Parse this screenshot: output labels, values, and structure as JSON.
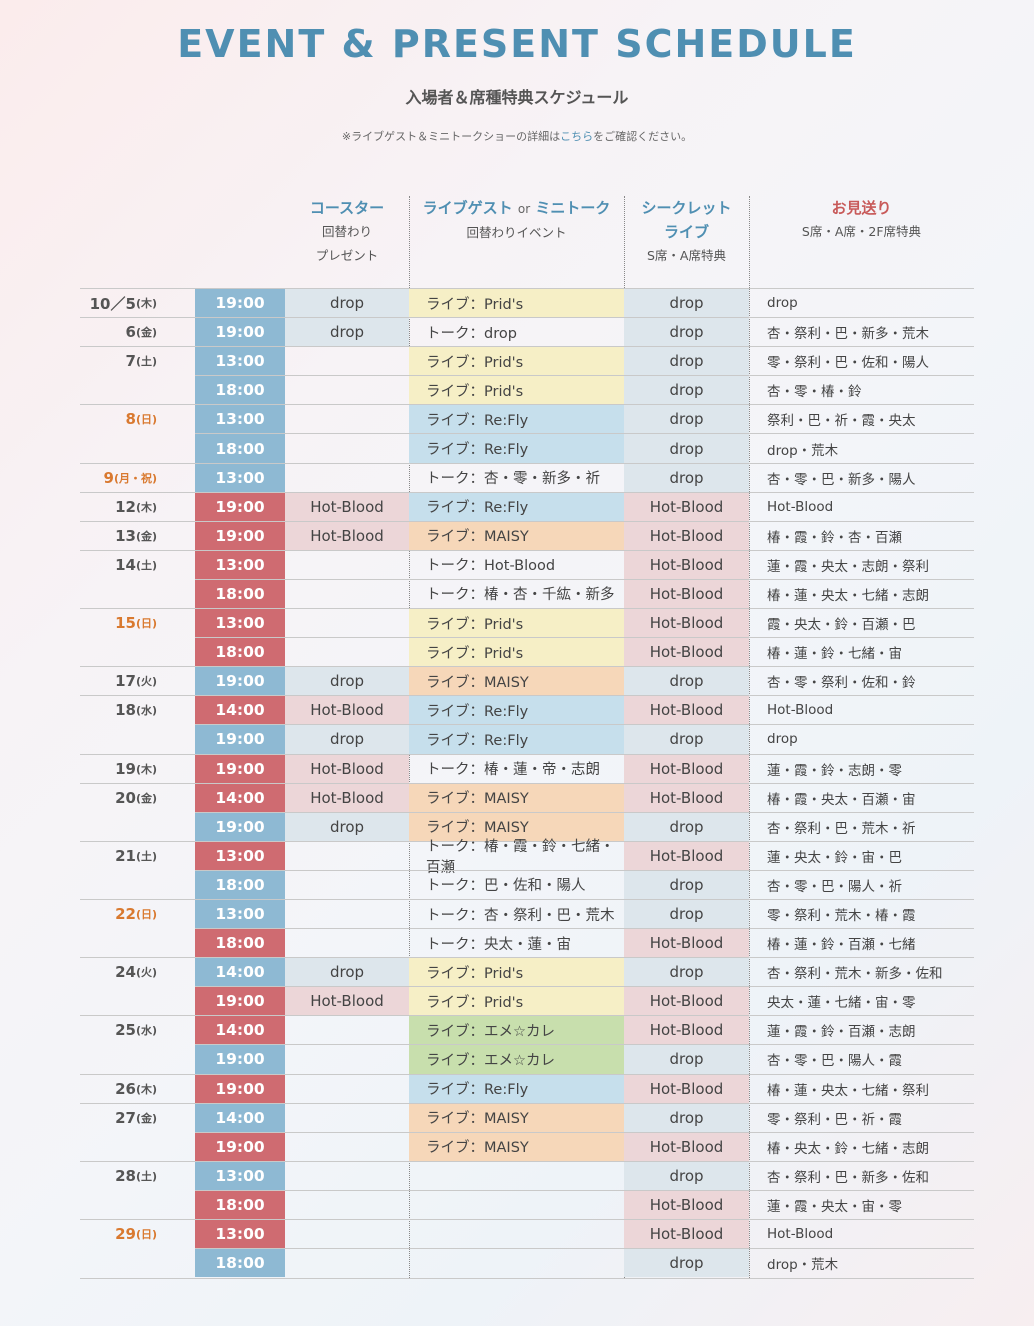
{
  "title": "EVENT & PRESENT SCHEDULE",
  "subtitle": "入場者＆席種特典スケジュール",
  "note": {
    "prefix": "※ライブゲスト＆ミニトークショーの詳細は",
    "link": "こちら",
    "suffix": "をご確認ください。"
  },
  "headers": {
    "coaster": {
      "title": "コースター",
      "sub1": "回替わり",
      "sub2": "プレゼント"
    },
    "event": {
      "title_a": "ライブゲスト",
      "or": "or",
      "title_b": "ミニトーク",
      "sub1": "回替わりイベント"
    },
    "secret": {
      "title1": "シークレット",
      "title2": "ライブ",
      "sub1": "S席・A席特典"
    },
    "send": {
      "title": "お見送り",
      "sub1": "S席・A席・2F席特典"
    }
  },
  "colors": {
    "title_blue": "#4f8fb2",
    "time_blue": "#8eb9d3",
    "time_red": "#cf6b71",
    "holiday_orange": "#d9792f",
    "drop_bg": "#dde6ec",
    "hotblood_bg": "#ecd6d8",
    "prids_bg": "#f6efc6",
    "refly_bg": "#c6dfec",
    "maisy_bg": "#f6d7b9",
    "eme_bg": "#c8dfad"
  },
  "rows": [
    {
      "date": "10／5",
      "dow": "(木)",
      "hol": false,
      "time": "19:00",
      "tc": "blue",
      "coaster": "drop",
      "cc": "drop",
      "event": "ライブ：Prid's",
      "ec": "prids",
      "secret": "drop",
      "sc": "drop",
      "send": "drop"
    },
    {
      "date": "6",
      "dow": "(金)",
      "hol": false,
      "time": "19:00",
      "tc": "blue",
      "coaster": "drop",
      "cc": "drop",
      "event": "トーク：drop",
      "ec": "talk",
      "secret": "drop",
      "sc": "drop",
      "send": "杏・祭利・巴・新多・荒木"
    },
    {
      "date": "7",
      "dow": "(土)",
      "hol": false,
      "time": "13:00",
      "tc": "blue",
      "coaster": "",
      "cc": "",
      "event": "ライブ：Prid's",
      "ec": "prids",
      "secret": "drop",
      "sc": "drop",
      "send": "零・祭利・巴・佐和・陽人"
    },
    {
      "date": "",
      "dow": "",
      "hol": false,
      "time": "18:00",
      "tc": "blue",
      "coaster": "",
      "cc": "",
      "event": "ライブ：Prid's",
      "ec": "prids",
      "secret": "drop",
      "sc": "drop",
      "send": "杏・零・椿・鈴"
    },
    {
      "date": "8",
      "dow": "(日)",
      "hol": true,
      "time": "13:00",
      "tc": "blue",
      "coaster": "",
      "cc": "",
      "event": "ライブ：Re:Fly",
      "ec": "refly",
      "secret": "drop",
      "sc": "drop",
      "send": "祭利・巴・祈・霞・央太"
    },
    {
      "date": "",
      "dow": "",
      "hol": false,
      "time": "18:00",
      "tc": "blue",
      "coaster": "",
      "cc": "",
      "event": "ライブ：Re:Fly",
      "ec": "refly",
      "secret": "drop",
      "sc": "drop",
      "send": "drop・荒木"
    },
    {
      "date": "9",
      "dow": "(月・祝)",
      "hol": true,
      "time": "13:00",
      "tc": "blue",
      "coaster": "",
      "cc": "",
      "event": "トーク：杏・零・新多・祈",
      "ec": "talk",
      "secret": "drop",
      "sc": "drop",
      "send": "杏・零・巴・新多・陽人"
    },
    {
      "date": "12",
      "dow": "(木)",
      "hol": false,
      "time": "19:00",
      "tc": "red",
      "coaster": "Hot-Blood",
      "cc": "hot",
      "event": "ライブ：Re:Fly",
      "ec": "refly",
      "secret": "Hot-Blood",
      "sc": "hot",
      "send": "Hot-Blood"
    },
    {
      "date": "13",
      "dow": "(金)",
      "hol": false,
      "time": "19:00",
      "tc": "red",
      "coaster": "Hot-Blood",
      "cc": "hot",
      "event": "ライブ：MAISY",
      "ec": "maisy",
      "secret": "Hot-Blood",
      "sc": "hot",
      "send": "椿・霞・鈴・杏・百瀬"
    },
    {
      "date": "14",
      "dow": "(土)",
      "hol": false,
      "time": "13:00",
      "tc": "red",
      "coaster": "",
      "cc": "",
      "event": "トーク：Hot-Blood",
      "ec": "talk",
      "secret": "Hot-Blood",
      "sc": "hot",
      "send": "蓮・霞・央太・志朗・祭利"
    },
    {
      "date": "",
      "dow": "",
      "hol": false,
      "time": "18:00",
      "tc": "red",
      "coaster": "",
      "cc": "",
      "event": "トーク：椿・杏・千紘・新多",
      "ec": "talk",
      "secret": "Hot-Blood",
      "sc": "hot",
      "send": "椿・蓮・央太・七緒・志朗"
    },
    {
      "date": "15",
      "dow": "(日)",
      "hol": true,
      "time": "13:00",
      "tc": "red",
      "coaster": "",
      "cc": "",
      "event": "ライブ：Prid's",
      "ec": "prids",
      "secret": "Hot-Blood",
      "sc": "hot",
      "send": "霞・央太・鈴・百瀬・巴"
    },
    {
      "date": "",
      "dow": "",
      "hol": false,
      "time": "18:00",
      "tc": "red",
      "coaster": "",
      "cc": "",
      "event": "ライブ：Prid's",
      "ec": "prids",
      "secret": "Hot-Blood",
      "sc": "hot",
      "send": "椿・蓮・鈴・七緒・宙"
    },
    {
      "date": "17",
      "dow": "(火)",
      "hol": false,
      "time": "19:00",
      "tc": "blue",
      "coaster": "drop",
      "cc": "drop",
      "event": "ライブ：MAISY",
      "ec": "maisy",
      "secret": "drop",
      "sc": "drop",
      "send": "杏・零・祭利・佐和・鈴"
    },
    {
      "date": "18",
      "dow": "(水)",
      "hol": false,
      "time": "14:00",
      "tc": "red",
      "coaster": "Hot-Blood",
      "cc": "hot",
      "event": "ライブ：Re:Fly",
      "ec": "refly",
      "secret": "Hot-Blood",
      "sc": "hot",
      "send": "Hot-Blood"
    },
    {
      "date": "",
      "dow": "",
      "hol": false,
      "time": "19:00",
      "tc": "blue",
      "coaster": "drop",
      "cc": "drop",
      "event": "ライブ：Re:Fly",
      "ec": "refly",
      "secret": "drop",
      "sc": "drop",
      "send": "drop"
    },
    {
      "date": "19",
      "dow": "(木)",
      "hol": false,
      "time": "19:00",
      "tc": "red",
      "coaster": "Hot-Blood",
      "cc": "hot",
      "event": "トーク：椿・蓮・帝・志朗",
      "ec": "talk",
      "secret": "Hot-Blood",
      "sc": "hot",
      "send": "蓮・霞・鈴・志朗・零"
    },
    {
      "date": "20",
      "dow": "(金)",
      "hol": false,
      "time": "14:00",
      "tc": "red",
      "coaster": "Hot-Blood",
      "cc": "hot",
      "event": "ライブ：MAISY",
      "ec": "maisy",
      "secret": "Hot-Blood",
      "sc": "hot",
      "send": "椿・霞・央太・百瀬・宙"
    },
    {
      "date": "",
      "dow": "",
      "hol": false,
      "time": "19:00",
      "tc": "blue",
      "coaster": "drop",
      "cc": "drop",
      "event": "ライブ：MAISY",
      "ec": "maisy",
      "secret": "drop",
      "sc": "drop",
      "send": "杏・祭利・巴・荒木・祈"
    },
    {
      "date": "21",
      "dow": "(土)",
      "hol": false,
      "time": "13:00",
      "tc": "red",
      "coaster": "",
      "cc": "",
      "event": "トーク：椿・霞・鈴・七緒・百瀬",
      "ec": "talk",
      "secret": "Hot-Blood",
      "sc": "hot",
      "send": "蓮・央太・鈴・宙・巴"
    },
    {
      "date": "",
      "dow": "",
      "hol": false,
      "time": "18:00",
      "tc": "blue",
      "coaster": "",
      "cc": "",
      "event": "トーク：巴・佐和・陽人",
      "ec": "talk",
      "secret": "drop",
      "sc": "drop",
      "send": "杏・零・巴・陽人・祈"
    },
    {
      "date": "22",
      "dow": "(日)",
      "hol": true,
      "time": "13:00",
      "tc": "blue",
      "coaster": "",
      "cc": "",
      "event": "トーク：杏・祭利・巴・荒木",
      "ec": "talk",
      "secret": "drop",
      "sc": "drop",
      "send": "零・祭利・荒木・椿・霞"
    },
    {
      "date": "",
      "dow": "",
      "hol": false,
      "time": "18:00",
      "tc": "red",
      "coaster": "",
      "cc": "",
      "event": "トーク：央太・蓮・宙",
      "ec": "talk",
      "secret": "Hot-Blood",
      "sc": "hot",
      "send": "椿・蓮・鈴・百瀬・七緒"
    },
    {
      "date": "24",
      "dow": "(火)",
      "hol": false,
      "time": "14:00",
      "tc": "blue",
      "coaster": "drop",
      "cc": "drop",
      "event": "ライブ：Prid's",
      "ec": "prids",
      "secret": "drop",
      "sc": "drop",
      "send": "杏・祭利・荒木・新多・佐和"
    },
    {
      "date": "",
      "dow": "",
      "hol": false,
      "time": "19:00",
      "tc": "red",
      "coaster": "Hot-Blood",
      "cc": "hot",
      "event": "ライブ：Prid's",
      "ec": "prids",
      "secret": "Hot-Blood",
      "sc": "hot",
      "send": "央太・蓮・七緒・宙・零"
    },
    {
      "date": "25",
      "dow": "(水)",
      "hol": false,
      "time": "14:00",
      "tc": "red",
      "coaster": "",
      "cc": "",
      "event": "ライブ：エメ☆カレ",
      "ec": "eme",
      "secret": "Hot-Blood",
      "sc": "hot",
      "send": "蓮・霞・鈴・百瀬・志朗"
    },
    {
      "date": "",
      "dow": "",
      "hol": false,
      "time": "19:00",
      "tc": "blue",
      "coaster": "",
      "cc": "",
      "event": "ライブ：エメ☆カレ",
      "ec": "eme",
      "secret": "drop",
      "sc": "drop",
      "send": "杏・零・巴・陽人・霞"
    },
    {
      "date": "26",
      "dow": "(木)",
      "hol": false,
      "time": "19:00",
      "tc": "red",
      "coaster": "",
      "cc": "",
      "event": "ライブ：Re:Fly",
      "ec": "refly",
      "secret": "Hot-Blood",
      "sc": "hot",
      "send": "椿・蓮・央太・七緒・祭利"
    },
    {
      "date": "27",
      "dow": "(金)",
      "hol": false,
      "time": "14:00",
      "tc": "blue",
      "coaster": "",
      "cc": "",
      "event": "ライブ：MAISY",
      "ec": "maisy",
      "secret": "drop",
      "sc": "drop",
      "send": "零・祭利・巴・祈・霞"
    },
    {
      "date": "",
      "dow": "",
      "hol": false,
      "time": "19:00",
      "tc": "red",
      "coaster": "",
      "cc": "",
      "event": "ライブ：MAISY",
      "ec": "maisy",
      "secret": "Hot-Blood",
      "sc": "hot",
      "send": "椿・央太・鈴・七緒・志朗"
    },
    {
      "date": "28",
      "dow": "(土)",
      "hol": false,
      "time": "13:00",
      "tc": "blue",
      "coaster": "",
      "cc": "",
      "event": "",
      "ec": "",
      "secret": "drop",
      "sc": "drop",
      "send": "杏・祭利・巴・新多・佐和"
    },
    {
      "date": "",
      "dow": "",
      "hol": false,
      "time": "18:00",
      "tc": "red",
      "coaster": "",
      "cc": "",
      "event": "",
      "ec": "",
      "secret": "Hot-Blood",
      "sc": "hot",
      "send": "蓮・霞・央太・宙・零"
    },
    {
      "date": "29",
      "dow": "(日)",
      "hol": true,
      "time": "13:00",
      "tc": "red",
      "coaster": "",
      "cc": "",
      "event": "",
      "ec": "",
      "secret": "Hot-Blood",
      "sc": "hot",
      "send": "Hot-Blood"
    },
    {
      "date": "",
      "dow": "",
      "hol": false,
      "time": "18:00",
      "tc": "blue",
      "coaster": "",
      "cc": "",
      "event": "",
      "ec": "",
      "secret": "drop",
      "sc": "drop",
      "send": "drop・荒木"
    }
  ]
}
